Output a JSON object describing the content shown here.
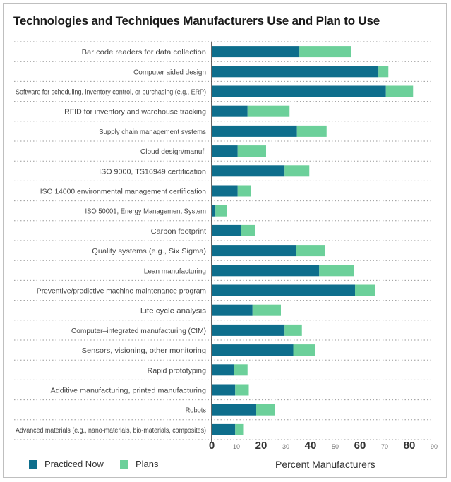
{
  "chart_data": {
    "type": "bar",
    "stacked": true,
    "orientation": "horizontal",
    "title": "Technologies and Techniques Manufacturers Use and Plan to Use",
    "xlabel": "Percent Manufacturers",
    "ylabel": "",
    "xlim": [
      0,
      90
    ],
    "x_ticks": [
      0,
      10,
      20,
      30,
      40,
      50,
      60,
      70,
      80,
      90
    ],
    "x_tick_labels": [
      "0",
      "10",
      "20",
      "30",
      "40",
      "50",
      "60",
      "70",
      "80",
      "90"
    ],
    "categories": [
      "Bar code readers for data collection",
      "Computer aided design",
      "Software for scheduling, inventory control, or purchasing (e.g., ERP)",
      "RFID for inventory and warehouse tracking",
      "Supply chain management systems",
      "Cloud design/manuf.",
      "ISO 9000, TS16949 certification",
      "ISO 14000 environmental management certification",
      "ISO 50001, Energy Management System",
      "Carbon footprint",
      "Quality systems (e.g., Six Sigma)",
      "Lean manufacturing",
      "Preventive/predictive machine maintenance program",
      "Life cycle analysis",
      "Computer–integrated manufacturing (CIM)",
      "Sensors, visioning, other monitoring",
      "Rapid prototyping",
      "Additive manufacturing, printed manufacturing",
      "Robots",
      "Advanced materials (e.g., nano-materials, bio-materials, composites)"
    ],
    "series": [
      {
        "name": "Practiced Now",
        "color": "#0e6e8c",
        "values": [
          35.5,
          67.5,
          70.5,
          14.5,
          34.5,
          10.5,
          29.5,
          10.5,
          1.5,
          12,
          34,
          43.5,
          58,
          16.5,
          29.5,
          33,
          9,
          9.5,
          18,
          9.5
        ]
      },
      {
        "name": "Plans",
        "color": "#6cd09a",
        "values": [
          21,
          4,
          11,
          17,
          12,
          11.5,
          10,
          5.5,
          4.5,
          5.5,
          12,
          14,
          8,
          11.5,
          7,
          9,
          5.5,
          5.5,
          7.5,
          3.5
        ]
      }
    ],
    "grid": false,
    "legend_position": "bottom-left"
  }
}
